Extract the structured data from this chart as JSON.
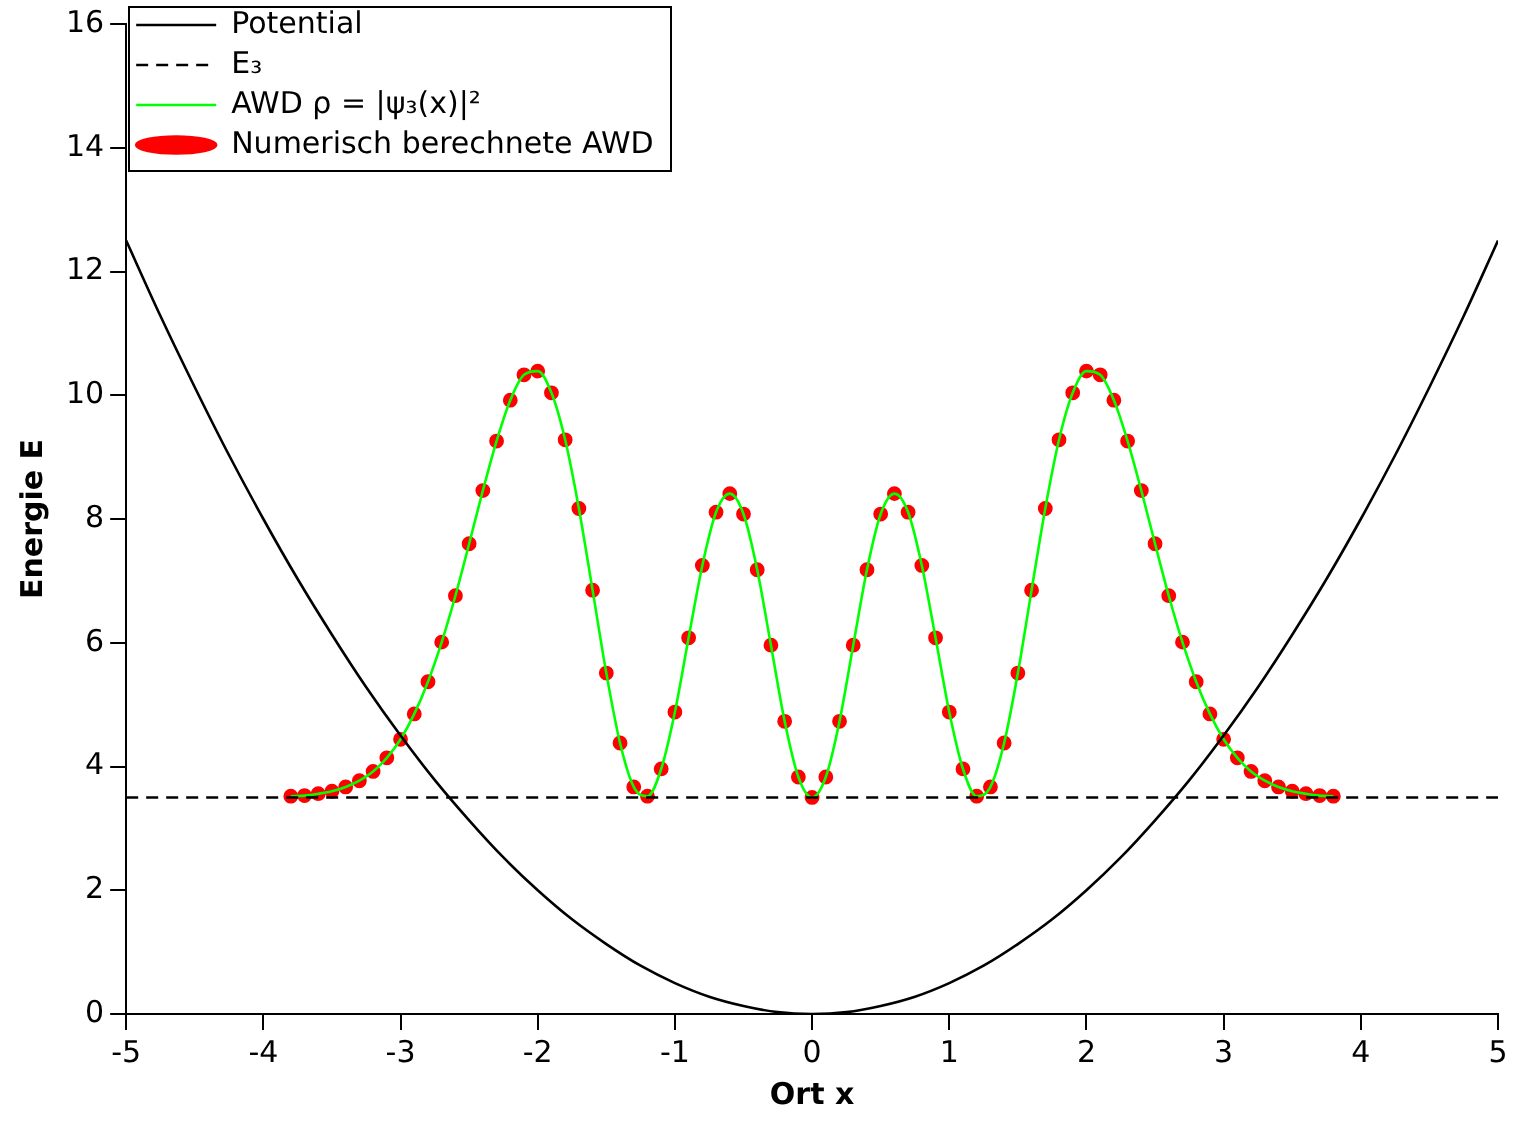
{
  "chart_data": {
    "type": "line",
    "xlabel": "Ort x",
    "ylabel": "Energie E",
    "xlim": [
      -5,
      5
    ],
    "ylim": [
      0,
      16
    ],
    "xticks": [
      -5,
      -4,
      -3,
      -2,
      -1,
      0,
      1,
      2,
      3,
      4,
      5
    ],
    "yticks": [
      0,
      2,
      4,
      6,
      8,
      10,
      12,
      14,
      16
    ],
    "grid": false,
    "legend": "top left",
    "series": [
      {
        "name": "Potential",
        "color": "#000000",
        "type": "line",
        "line_style": "solid",
        "marker": "none",
        "x": [
          -5,
          -4.75,
          -4.5,
          -4.25,
          -4,
          -3.75,
          -3.5,
          -3.25,
          -3,
          -2.75,
          -2.5,
          -2.25,
          -2,
          -1.75,
          -1.5,
          -1.25,
          -1,
          -0.75,
          -0.5,
          -0.25,
          0,
          0.25,
          0.5,
          0.75,
          1,
          1.25,
          1.5,
          1.75,
          2,
          2.25,
          2.5,
          2.75,
          3,
          3.25,
          3.5,
          3.75,
          4,
          4.25,
          4.5,
          4.75,
          5
        ],
        "values": [
          12.5,
          11.28,
          10.13,
          9.03,
          8,
          7.03,
          6.13,
          5.28,
          4.5,
          3.78,
          3.13,
          2.53,
          2,
          1.53,
          1.13,
          0.78,
          0.5,
          0.28,
          0.13,
          0.03,
          0,
          0.03,
          0.13,
          0.28,
          0.5,
          0.78,
          1.13,
          1.53,
          2,
          2.53,
          3.13,
          3.78,
          4.5,
          5.28,
          6.13,
          7.03,
          8,
          9.03,
          10.13,
          11.28,
          12.5
        ]
      },
      {
        "name": "E₃",
        "color": "#000000",
        "type": "line",
        "line_style": "dashed",
        "marker": "none",
        "x": [
          -5,
          5
        ],
        "values": [
          3.5,
          3.5
        ]
      },
      {
        "name": "AWD ρ = |ψ₃(x)|²",
        "color": "#00ff00",
        "type": "line",
        "line_style": "solid",
        "marker": "none",
        "x": [
          -3.8,
          -3.7,
          -3.6,
          -3.5,
          -3.4,
          -3.3,
          -3.2,
          -3.1,
          -3,
          -2.9,
          -2.8,
          -2.7,
          -2.6,
          -2.5,
          -2.4,
          -2.3,
          -2.2,
          -2.1,
          -2,
          -1.9,
          -1.8,
          -1.7,
          -1.6,
          -1.5,
          -1.4,
          -1.3,
          -1.2,
          -1.1,
          -1,
          -0.9,
          -0.8,
          -0.7,
          -0.6,
          -0.5,
          -0.4,
          -0.3,
          -0.2,
          -0.1,
          0,
          0.1,
          0.2,
          0.3,
          0.4,
          0.5,
          0.6,
          0.7,
          0.8,
          0.9,
          1,
          1.1,
          1.2,
          1.3,
          1.4,
          1.5,
          1.6,
          1.7,
          1.8,
          1.9,
          2,
          2.1,
          2.2,
          2.3,
          2.4,
          2.5,
          2.6,
          2.7,
          2.8,
          2.9,
          3,
          3.1,
          3.2,
          3.3,
          3.4,
          3.5,
          3.6,
          3.7,
          3.8
        ],
        "values": [
          3.52,
          3.53,
          3.56,
          3.6,
          3.67,
          3.77,
          3.92,
          4.14,
          4.44,
          4.85,
          5.37,
          6.01,
          6.76,
          7.6,
          8.46,
          9.26,
          9.92,
          10.33,
          10.39,
          10.04,
          9.28,
          8.17,
          6.85,
          5.51,
          4.38,
          3.67,
          3.52,
          3.96,
          4.88,
          6.08,
          7.25,
          8.11,
          8.41,
          8.08,
          7.18,
          5.96,
          4.73,
          3.83,
          3.5,
          3.83,
          4.73,
          5.96,
          7.18,
          8.08,
          8.41,
          8.11,
          7.25,
          6.08,
          4.88,
          3.96,
          3.52,
          3.67,
          4.38,
          5.51,
          6.85,
          8.17,
          9.28,
          10.04,
          10.39,
          10.33,
          9.92,
          9.26,
          8.46,
          7.6,
          6.76,
          6.01,
          5.37,
          4.85,
          4.44,
          4.14,
          3.92,
          3.77,
          3.67,
          3.6,
          3.56,
          3.53,
          3.52
        ]
      },
      {
        "name": "Numerisch berechnete AWD",
        "color": "#ff0000",
        "type": "scatter",
        "marker": "circle",
        "x": [
          -3.8,
          -3.7,
          -3.6,
          -3.5,
          -3.4,
          -3.3,
          -3.2,
          -3.1,
          -3,
          -2.9,
          -2.8,
          -2.7,
          -2.6,
          -2.5,
          -2.4,
          -2.3,
          -2.2,
          -2.1,
          -2,
          -1.9,
          -1.8,
          -1.7,
          -1.6,
          -1.5,
          -1.4,
          -1.3,
          -1.2,
          -1.1,
          -1,
          -0.9,
          -0.8,
          -0.7,
          -0.6,
          -0.5,
          -0.4,
          -0.3,
          -0.2,
          -0.1,
          0,
          0.1,
          0.2,
          0.3,
          0.4,
          0.5,
          0.6,
          0.7,
          0.8,
          0.9,
          1,
          1.1,
          1.2,
          1.3,
          1.4,
          1.5,
          1.6,
          1.7,
          1.8,
          1.9,
          2,
          2.1,
          2.2,
          2.3,
          2.4,
          2.5,
          2.6,
          2.7,
          2.8,
          2.9,
          3,
          3.1,
          3.2,
          3.3,
          3.4,
          3.5,
          3.6,
          3.7,
          3.8
        ],
        "values": [
          3.52,
          3.53,
          3.56,
          3.6,
          3.67,
          3.77,
          3.92,
          4.14,
          4.44,
          4.85,
          5.37,
          6.01,
          6.76,
          7.6,
          8.46,
          9.26,
          9.92,
          10.33,
          10.39,
          10.04,
          9.28,
          8.17,
          6.85,
          5.51,
          4.38,
          3.67,
          3.52,
          3.96,
          4.88,
          6.08,
          7.25,
          8.11,
          8.41,
          8.08,
          7.18,
          5.96,
          4.73,
          3.83,
          3.5,
          3.83,
          4.73,
          5.96,
          7.18,
          8.08,
          8.41,
          8.11,
          7.25,
          6.08,
          4.88,
          3.96,
          3.52,
          3.67,
          4.38,
          5.51,
          6.85,
          8.17,
          9.28,
          10.04,
          10.39,
          10.33,
          9.92,
          9.26,
          8.46,
          7.6,
          6.76,
          6.01,
          5.37,
          4.85,
          4.44,
          4.14,
          3.92,
          3.77,
          3.67,
          3.6,
          3.56,
          3.53,
          3.52
        ]
      }
    ]
  }
}
